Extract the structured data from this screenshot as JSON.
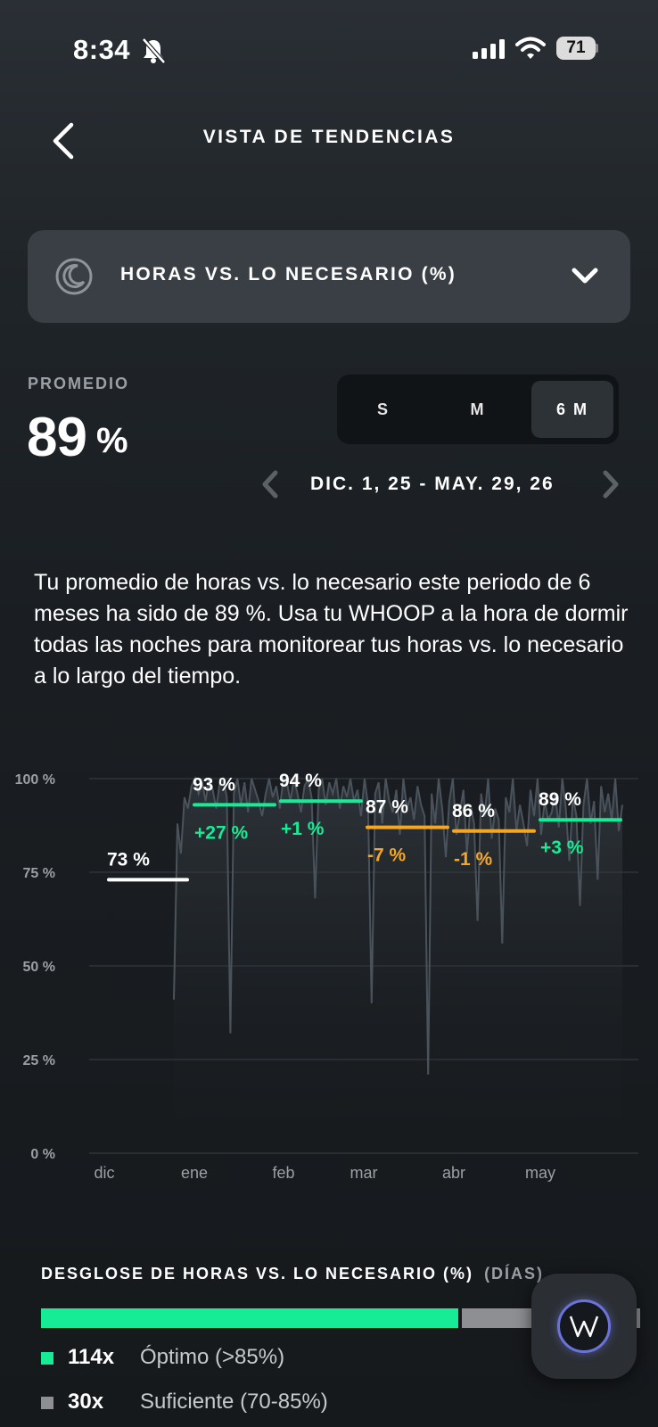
{
  "status_bar": {
    "time": "8:34",
    "battery": "71"
  },
  "header": {
    "title": "VISTA DE TENDENCIAS"
  },
  "metric_selector": {
    "label": "HORAS VS. LO NECESARIO (%)"
  },
  "average": {
    "label": "PROMEDIO",
    "value": "89",
    "unit": "%"
  },
  "period_toggle": {
    "options": [
      "S",
      "M",
      "6 M"
    ],
    "selected": "6 M"
  },
  "date_range": "DIC. 1, 25 - MAY. 29, 26",
  "description": "Tu promedio de horas vs. lo necesario este periodo de 6 meses ha sido de 89 %. Usa tu WHOOP a la hora de dormir todas las noches para monitorear tus horas vs. lo necesario a lo largo del tiempo.",
  "colors": {
    "positive": "#16ec95",
    "negative": "#f5a623",
    "neutral": "#ffffff",
    "gray": "#8d8f92"
  },
  "chart_data": {
    "type": "line",
    "y_ticks": [
      "100 %",
      "75 %",
      "50 %",
      "25 %",
      "0 %"
    ],
    "ylim": [
      0,
      100
    ],
    "x_labels": [
      "dic",
      "ene",
      "feb",
      "mar",
      "abr",
      "may"
    ],
    "monthly": [
      {
        "month": "dic",
        "avg": 73,
        "avg_label": "73 %",
        "change": "",
        "trend": "neutral"
      },
      {
        "month": "ene",
        "avg": 93,
        "avg_label": "93 %",
        "change": "+27 %",
        "trend": "positive"
      },
      {
        "month": "feb",
        "avg": 94,
        "avg_label": "94 %",
        "change": "+1 %",
        "trend": "positive"
      },
      {
        "month": "mar",
        "avg": 87,
        "avg_label": "87 %",
        "change": "-7 %",
        "trend": "negative"
      },
      {
        "month": "abr",
        "avg": 86,
        "avg_label": "86 %",
        "change": "-1 %",
        "trend": "negative"
      },
      {
        "month": "may",
        "avg": 89,
        "avg_label": "89 %",
        "change": "+3 %",
        "trend": "positive"
      }
    ],
    "daily": [
      41,
      88,
      80,
      95,
      92,
      98,
      100,
      96,
      99,
      94,
      100,
      97,
      92,
      99,
      100,
      95,
      32,
      96,
      100,
      93,
      99,
      91,
      100,
      97,
      94,
      90,
      96,
      100,
      95,
      98,
      92,
      100,
      99,
      94,
      100,
      96,
      91,
      98,
      100,
      95,
      68,
      97,
      100,
      93,
      99,
      96,
      100,
      92,
      98,
      95,
      100,
      94,
      97,
      90,
      100,
      93,
      40,
      96,
      99,
      88,
      100,
      94,
      91,
      97,
      85,
      100,
      92,
      95,
      89,
      98,
      93,
      90,
      21,
      96,
      88,
      100,
      92,
      79,
      94,
      100,
      85,
      91,
      97,
      80,
      93,
      88,
      62,
      96,
      90,
      100,
      84,
      92,
      89,
      56,
      95,
      91,
      100,
      86,
      93,
      88,
      82,
      97,
      90,
      100,
      85,
      94,
      89,
      91,
      96,
      87,
      100,
      92,
      78,
      95,
      90,
      66,
      93,
      100,
      88,
      94,
      73,
      98,
      91,
      96,
      89,
      100,
      86,
      93
    ]
  },
  "breakdown": {
    "title": "DESGLOSE DE HORAS VS. LO NECESARIO (%)",
    "unit": "(DÍAS)",
    "items": [
      {
        "count": "114x",
        "label": "Óptimo (>85%)",
        "color": "#16ec95",
        "value": 114
      },
      {
        "count": "30x",
        "label": "Suficiente (70-85%)",
        "color": "#8d8f92",
        "value": 30
      }
    ]
  }
}
